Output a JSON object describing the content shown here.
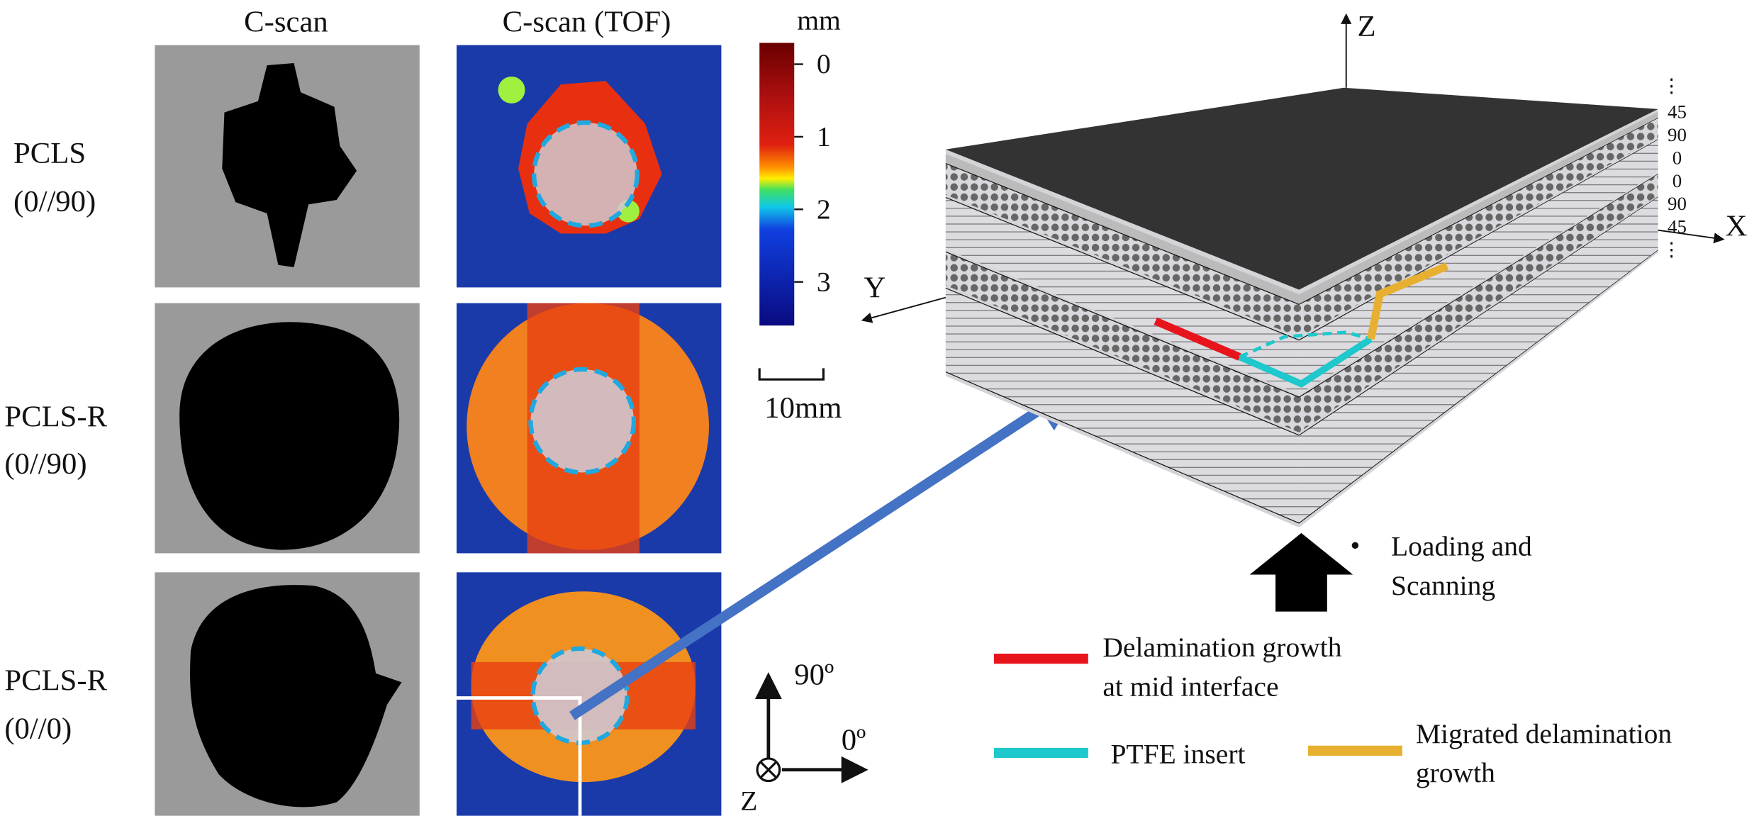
{
  "columns": [
    "C-scan",
    "C-scan (TOF)"
  ],
  "rows": [
    {
      "label": [
        "PCLS",
        "(0//90)"
      ]
    },
    {
      "label": [
        "PCLS-R",
        "(0//90)"
      ]
    },
    {
      "label": [
        "PCLS-R",
        "(0//0)"
      ]
    }
  ],
  "colorbar": {
    "unit": "mm",
    "ticks": [
      "0",
      "1",
      "2",
      "3"
    ]
  },
  "scale_bar": "10mm",
  "orientation": {
    "up": "90º",
    "right": "0º",
    "out": "Z"
  },
  "laminate": {
    "axes": {
      "z": "Z",
      "x": "X",
      "y": "Y"
    },
    "ply_angles": [
      "45",
      "90",
      "0",
      "0",
      "90",
      "45"
    ]
  },
  "loading": [
    "Loading and",
    "Scanning"
  ],
  "legend": [
    {
      "label": [
        "Delamination growth",
        "at mid interface"
      ],
      "color": "#e8141c"
    },
    {
      "label": [
        "PTFE insert"
      ],
      "color": "#1ec8cc"
    },
    {
      "label": [
        "Migrated delamination",
        "growth"
      ],
      "color": "#e8b030"
    }
  ]
}
